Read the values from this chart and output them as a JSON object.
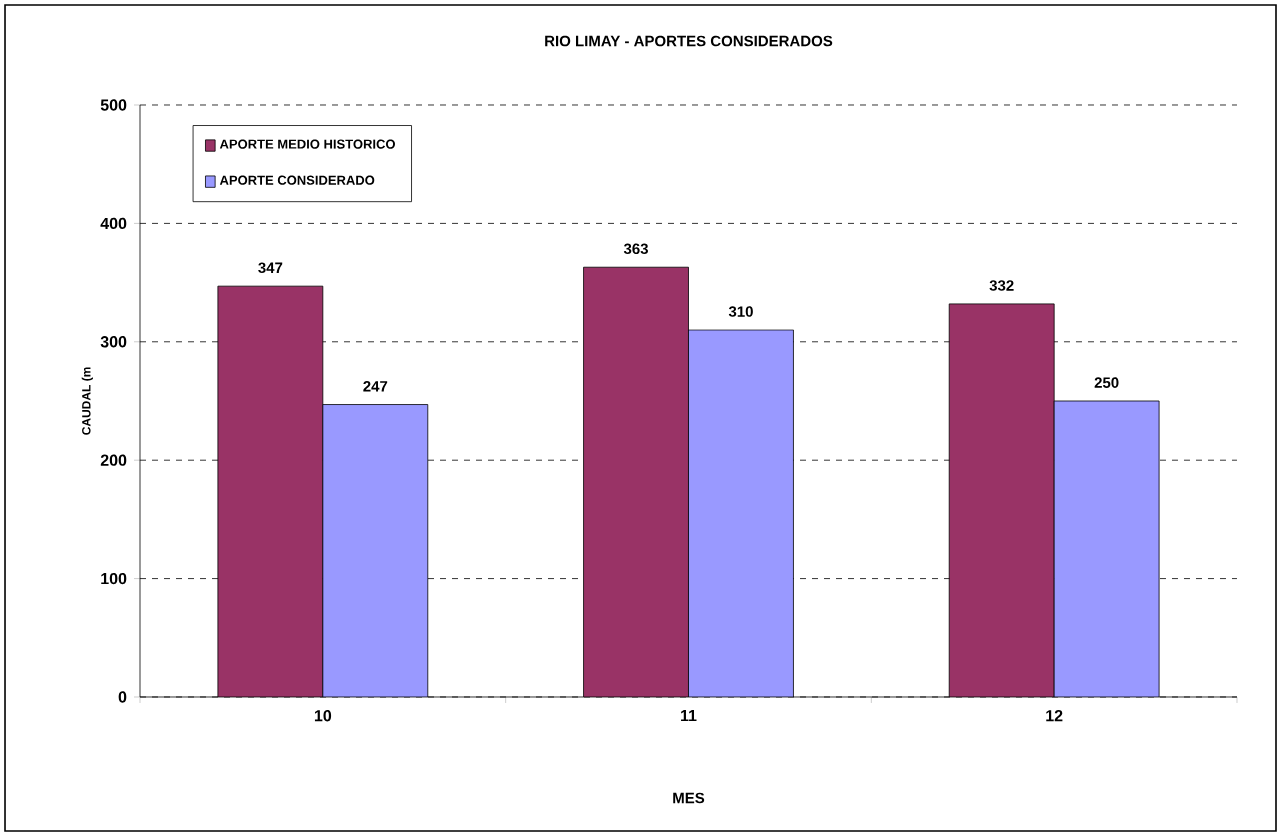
{
  "chart_data": {
    "type": "bar",
    "title": "RIO LIMAY - APORTES CONSIDERADOS",
    "xlabel": "MES",
    "ylabel": "CAUDAL (m",
    "categories": [
      "10",
      "11",
      "12"
    ],
    "series": [
      {
        "name": "APORTE MEDIO HISTORICO",
        "color": "#993366",
        "values": [
          347,
          363,
          332
        ]
      },
      {
        "name": "APORTE CONSIDERADO",
        "color": "#9999ff",
        "values": [
          247,
          310,
          250
        ]
      }
    ],
    "ylim": [
      0,
      500
    ],
    "yticks": [
      0,
      100,
      200,
      300,
      400,
      500
    ],
    "grid": "y",
    "legend": "top left",
    "data_labels": true
  }
}
